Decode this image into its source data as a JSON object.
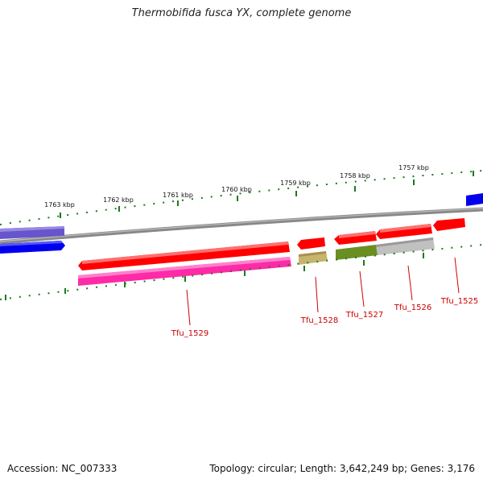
{
  "title": "Thermobifida fusca YX, complete genome",
  "footer": {
    "accession": "Accession: NC_007333",
    "summary": "Topology: circular; Length: 3,642,249 bp; Genes: 3,176"
  },
  "ticks": [
    "1763 kbp",
    "1762 kbp",
    "1761 kbp",
    "1760 kbp",
    "1759 kbp",
    "1758 kbp",
    "1757 kbp"
  ],
  "genes": [
    "Tfu_1529",
    "Tfu_1528",
    "Tfu_1527",
    "Tfu_1526",
    "Tfu_1525"
  ],
  "colors": {
    "cds": "#ff0000",
    "backbone": "#777777",
    "tick": "#1a7a1a",
    "label": "#cc0000",
    "blue": "#0000ee",
    "purple": "#6655cc",
    "pink": "#ff2aa8",
    "khaki": "#c8b46e",
    "olive": "#6b8e23",
    "grey": "#c0c0c0"
  }
}
